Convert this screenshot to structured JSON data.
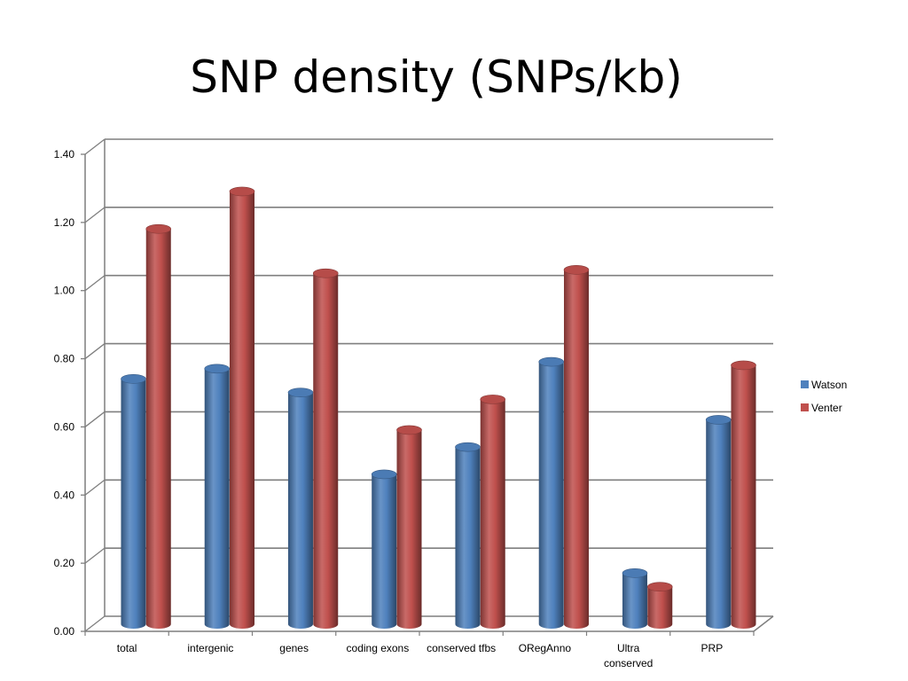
{
  "slide": {
    "title": "SNP density (SNPs/kb)"
  },
  "chart_data": {
    "type": "bar",
    "title": "",
    "xlabel": "",
    "ylabel": "",
    "ylim": [
      0,
      1.4
    ],
    "ytick_step": 0.2,
    "ytick_labels": [
      "0.00",
      "0.20",
      "0.40",
      "0.60",
      "0.80",
      "1.00",
      "1.20",
      "1.40"
    ],
    "categories": [
      [
        "total"
      ],
      [
        "intergenic"
      ],
      [
        "genes"
      ],
      [
        "coding exons"
      ],
      [
        "conserved tfbs"
      ],
      [
        "ORegAnno"
      ],
      [
        "Ultra",
        "conserved"
      ],
      [
        "PRP"
      ]
    ],
    "series": [
      {
        "name": "Watson",
        "color": "#4f81bd",
        "values": [
          0.72,
          0.75,
          0.68,
          0.44,
          0.52,
          0.77,
          0.15,
          0.6
        ]
      },
      {
        "name": "Venter",
        "color": "#c0504d",
        "values": [
          1.16,
          1.27,
          1.03,
          0.57,
          0.66,
          1.04,
          0.11,
          0.76
        ]
      }
    ],
    "grid": true,
    "style": "3d-cylinder",
    "legend_position": "right"
  }
}
